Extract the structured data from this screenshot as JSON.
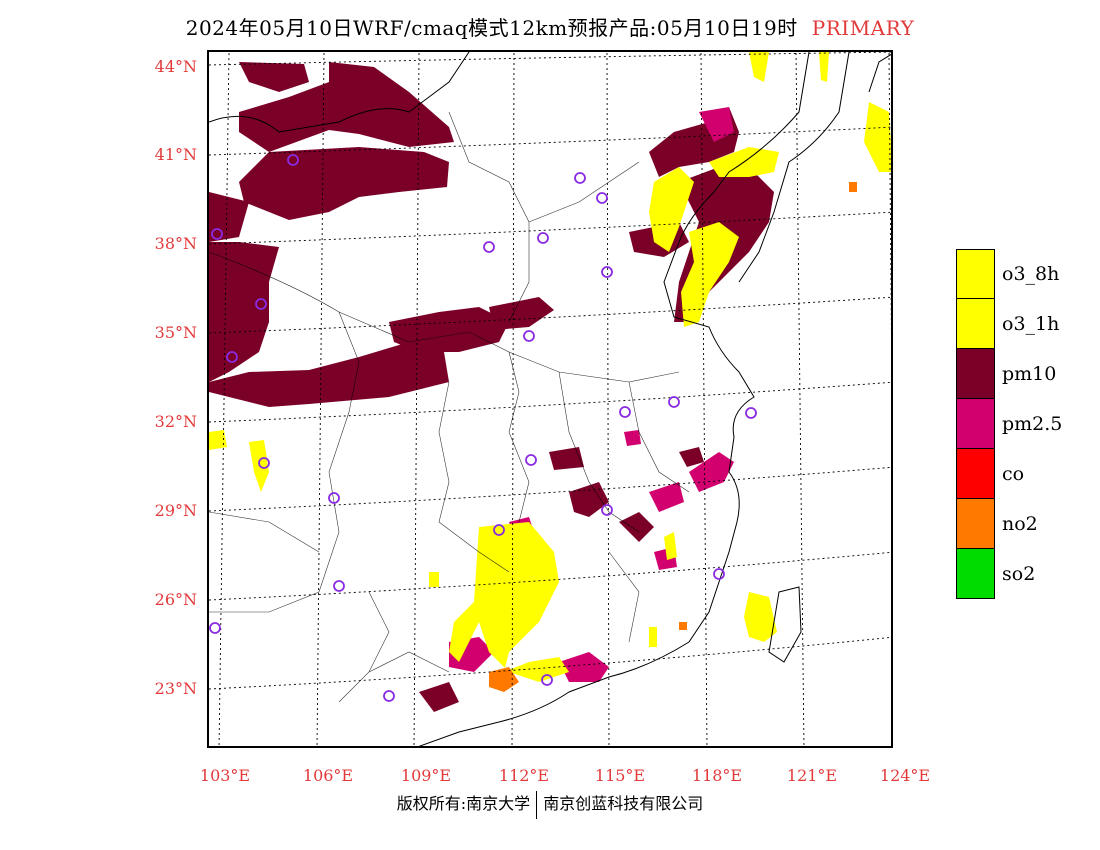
{
  "title": {
    "main": "2024年05月10日WRF/cmaq模式12km预报产品:05月10日19时",
    "tag": "PRIMARY"
  },
  "map": {
    "lat_labels": [
      "44°N",
      "41°N",
      "38°N",
      "35°N",
      "32°N",
      "29°N",
      "26°N",
      "23°N"
    ],
    "lon_labels": [
      "103°E",
      "106°E",
      "109°E",
      "112°E",
      "115°E",
      "118°E",
      "121°E",
      "124°E"
    ],
    "lat_range": [
      21,
      44.5
    ],
    "lon_range": [
      103,
      124
    ]
  },
  "legend": [
    {
      "label": "o3_8h",
      "color": "#ffff00"
    },
    {
      "label": "o3_1h",
      "color": "#ffff00"
    },
    {
      "label": "pm10",
      "color": "#7b0028"
    },
    {
      "label": "pm2.5",
      "color": "#d2006e"
    },
    {
      "label": "co",
      "color": "#ff0000"
    },
    {
      "label": "no2",
      "color": "#ff7800"
    },
    {
      "label": "so2",
      "color": "#00dc00"
    }
  ],
  "colors": {
    "pm10": "#7b0028",
    "pm25": "#d2006e",
    "o3": "#ffff00",
    "no2": "#ff7800",
    "station": "#8a2be2",
    "label": "#e23a3a"
  },
  "copyright": {
    "left": "版权所有:南京大学",
    "right": "南京创蓝科技有限公司"
  }
}
